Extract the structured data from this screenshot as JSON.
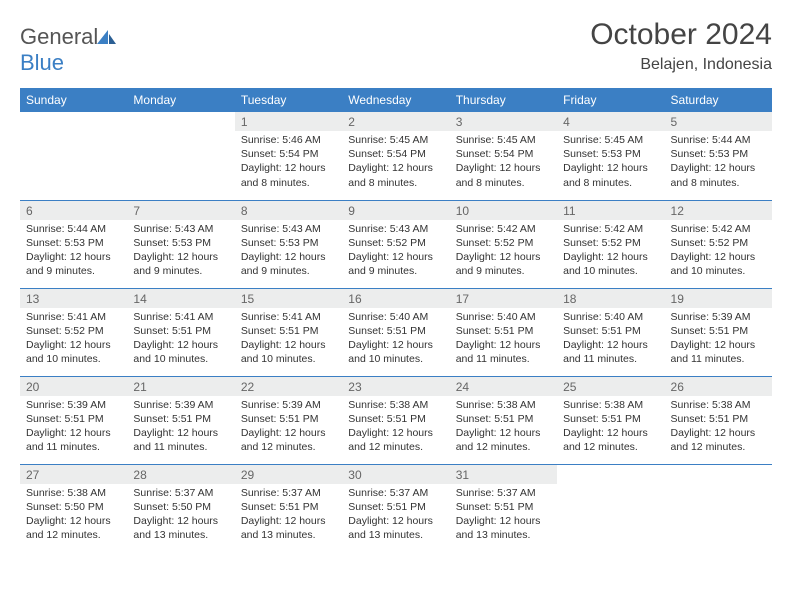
{
  "logo": {
    "part1": "General",
    "part2": "Blue"
  },
  "title": "October 2024",
  "location": "Belajen, Indonesia",
  "colors": {
    "header_bg": "#3b7fc4",
    "daynum_bg": "#eceded",
    "rule": "#3b7fc4",
    "logo_icon": "#3b7fc4"
  },
  "daynames": [
    "Sunday",
    "Monday",
    "Tuesday",
    "Wednesday",
    "Thursday",
    "Friday",
    "Saturday"
  ],
  "weeks": [
    [
      null,
      null,
      {
        "n": "1",
        "sr": "5:46 AM",
        "ss": "5:54 PM",
        "dl": "12 hours and 8 minutes."
      },
      {
        "n": "2",
        "sr": "5:45 AM",
        "ss": "5:54 PM",
        "dl": "12 hours and 8 minutes."
      },
      {
        "n": "3",
        "sr": "5:45 AM",
        "ss": "5:54 PM",
        "dl": "12 hours and 8 minutes."
      },
      {
        "n": "4",
        "sr": "5:45 AM",
        "ss": "5:53 PM",
        "dl": "12 hours and 8 minutes."
      },
      {
        "n": "5",
        "sr": "5:44 AM",
        "ss": "5:53 PM",
        "dl": "12 hours and 8 minutes."
      }
    ],
    [
      {
        "n": "6",
        "sr": "5:44 AM",
        "ss": "5:53 PM",
        "dl": "12 hours and 9 minutes."
      },
      {
        "n": "7",
        "sr": "5:43 AM",
        "ss": "5:53 PM",
        "dl": "12 hours and 9 minutes."
      },
      {
        "n": "8",
        "sr": "5:43 AM",
        "ss": "5:53 PM",
        "dl": "12 hours and 9 minutes."
      },
      {
        "n": "9",
        "sr": "5:43 AM",
        "ss": "5:52 PM",
        "dl": "12 hours and 9 minutes."
      },
      {
        "n": "10",
        "sr": "5:42 AM",
        "ss": "5:52 PM",
        "dl": "12 hours and 9 minutes."
      },
      {
        "n": "11",
        "sr": "5:42 AM",
        "ss": "5:52 PM",
        "dl": "12 hours and 10 minutes."
      },
      {
        "n": "12",
        "sr": "5:42 AM",
        "ss": "5:52 PM",
        "dl": "12 hours and 10 minutes."
      }
    ],
    [
      {
        "n": "13",
        "sr": "5:41 AM",
        "ss": "5:52 PM",
        "dl": "12 hours and 10 minutes."
      },
      {
        "n": "14",
        "sr": "5:41 AM",
        "ss": "5:51 PM",
        "dl": "12 hours and 10 minutes."
      },
      {
        "n": "15",
        "sr": "5:41 AM",
        "ss": "5:51 PM",
        "dl": "12 hours and 10 minutes."
      },
      {
        "n": "16",
        "sr": "5:40 AM",
        "ss": "5:51 PM",
        "dl": "12 hours and 10 minutes."
      },
      {
        "n": "17",
        "sr": "5:40 AM",
        "ss": "5:51 PM",
        "dl": "12 hours and 11 minutes."
      },
      {
        "n": "18",
        "sr": "5:40 AM",
        "ss": "5:51 PM",
        "dl": "12 hours and 11 minutes."
      },
      {
        "n": "19",
        "sr": "5:39 AM",
        "ss": "5:51 PM",
        "dl": "12 hours and 11 minutes."
      }
    ],
    [
      {
        "n": "20",
        "sr": "5:39 AM",
        "ss": "5:51 PM",
        "dl": "12 hours and 11 minutes."
      },
      {
        "n": "21",
        "sr": "5:39 AM",
        "ss": "5:51 PM",
        "dl": "12 hours and 11 minutes."
      },
      {
        "n": "22",
        "sr": "5:39 AM",
        "ss": "5:51 PM",
        "dl": "12 hours and 12 minutes."
      },
      {
        "n": "23",
        "sr": "5:38 AM",
        "ss": "5:51 PM",
        "dl": "12 hours and 12 minutes."
      },
      {
        "n": "24",
        "sr": "5:38 AM",
        "ss": "5:51 PM",
        "dl": "12 hours and 12 minutes."
      },
      {
        "n": "25",
        "sr": "5:38 AM",
        "ss": "5:51 PM",
        "dl": "12 hours and 12 minutes."
      },
      {
        "n": "26",
        "sr": "5:38 AM",
        "ss": "5:51 PM",
        "dl": "12 hours and 12 minutes."
      }
    ],
    [
      {
        "n": "27",
        "sr": "5:38 AM",
        "ss": "5:50 PM",
        "dl": "12 hours and 12 minutes."
      },
      {
        "n": "28",
        "sr": "5:37 AM",
        "ss": "5:50 PM",
        "dl": "12 hours and 13 minutes."
      },
      {
        "n": "29",
        "sr": "5:37 AM",
        "ss": "5:51 PM",
        "dl": "12 hours and 13 minutes."
      },
      {
        "n": "30",
        "sr": "5:37 AM",
        "ss": "5:51 PM",
        "dl": "12 hours and 13 minutes."
      },
      {
        "n": "31",
        "sr": "5:37 AM",
        "ss": "5:51 PM",
        "dl": "12 hours and 13 minutes."
      },
      null,
      null
    ]
  ],
  "labels": {
    "sunrise": "Sunrise: ",
    "sunset": "Sunset: ",
    "daylight": "Daylight: "
  }
}
